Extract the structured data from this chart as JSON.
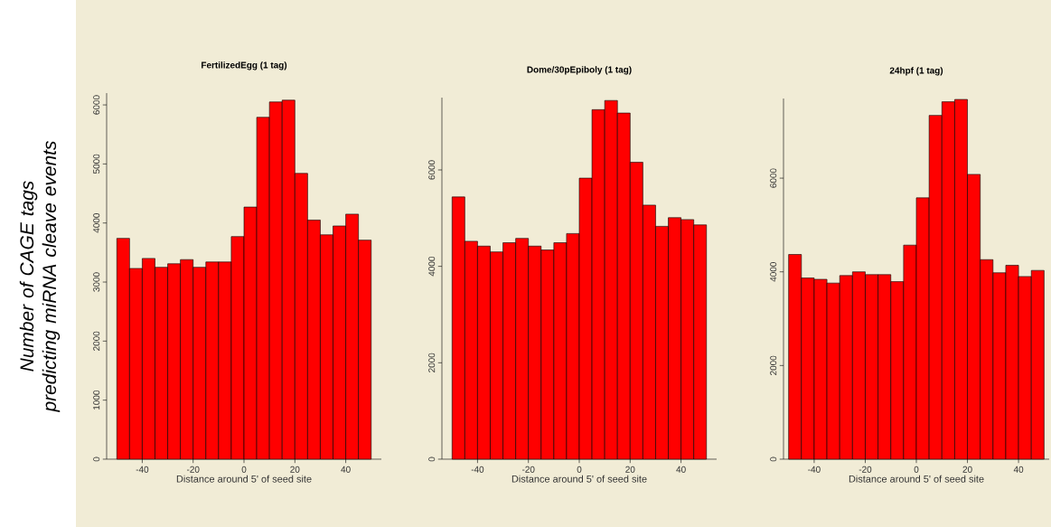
{
  "chart_data": [
    {
      "type": "histogram",
      "title": "FertilizedEgg (1 tag)",
      "xlabel": "Distance around 5' of seed site",
      "ylabel": "Number of CAGE tags predicting miRNA cleave events",
      "color": "#ff0000",
      "bins": [
        -50,
        -45,
        -40,
        -35,
        -30,
        -25,
        -20,
        -15,
        -10,
        -5,
        0,
        5,
        10,
        15,
        20,
        25,
        30,
        35,
        40,
        45,
        50
      ],
      "values": [
        3740,
        3230,
        3400,
        3250,
        3310,
        3380,
        3250,
        3340,
        3340,
        3770,
        4270,
        5790,
        6050,
        6080,
        4840,
        4050,
        3800,
        3950,
        4150,
        3710
      ],
      "xlim": [
        -54,
        54
      ],
      "ylim": [
        0,
        6200
      ],
      "xticks": [
        -40,
        -20,
        0,
        20,
        40
      ],
      "yticks": [
        0,
        1000,
        2000,
        3000,
        4000,
        5000,
        6000
      ]
    },
    {
      "type": "histogram",
      "title": "Dome/30pEpiboly (1 tag)",
      "xlabel": "Distance around 5' of seed site",
      "color": "#ff0000",
      "bins": [
        -50,
        -45,
        -40,
        -35,
        -30,
        -25,
        -20,
        -15,
        -10,
        -5,
        0,
        5,
        10,
        15,
        20,
        25,
        30,
        35,
        40,
        45,
        50
      ],
      "values": [
        5440,
        4520,
        4420,
        4300,
        4490,
        4580,
        4420,
        4340,
        4490,
        4680,
        5830,
        7250,
        7440,
        7180,
        6160,
        5270,
        4830,
        5010,
        4970,
        4860
      ],
      "xlim": [
        -54,
        54
      ],
      "ylim": [
        0,
        7500
      ],
      "xticks": [
        -40,
        -20,
        0,
        20,
        40
      ],
      "yticks": [
        0,
        2000,
        4000,
        6000
      ]
    },
    {
      "type": "histogram",
      "title": "24hpf (1 tag)",
      "xlabel": "Distance around 5' of seed site",
      "color": "#ff0000",
      "bins": [
        -50,
        -45,
        -40,
        -35,
        -30,
        -25,
        -20,
        -15,
        -10,
        -5,
        0,
        5,
        10,
        15,
        20,
        25,
        30,
        35,
        40,
        45,
        50
      ],
      "values": [
        4370,
        3870,
        3840,
        3760,
        3920,
        4000,
        3940,
        3940,
        3790,
        4570,
        5580,
        7340,
        7630,
        7680,
        6080,
        4260,
        3980,
        4140,
        3900,
        4030
      ],
      "xlim": [
        -52,
        52
      ],
      "ylim": [
        0,
        7700
      ],
      "xticks": [
        -40,
        -20,
        0,
        20,
        40
      ],
      "yticks": [
        0,
        2000,
        4000,
        6000
      ]
    }
  ]
}
